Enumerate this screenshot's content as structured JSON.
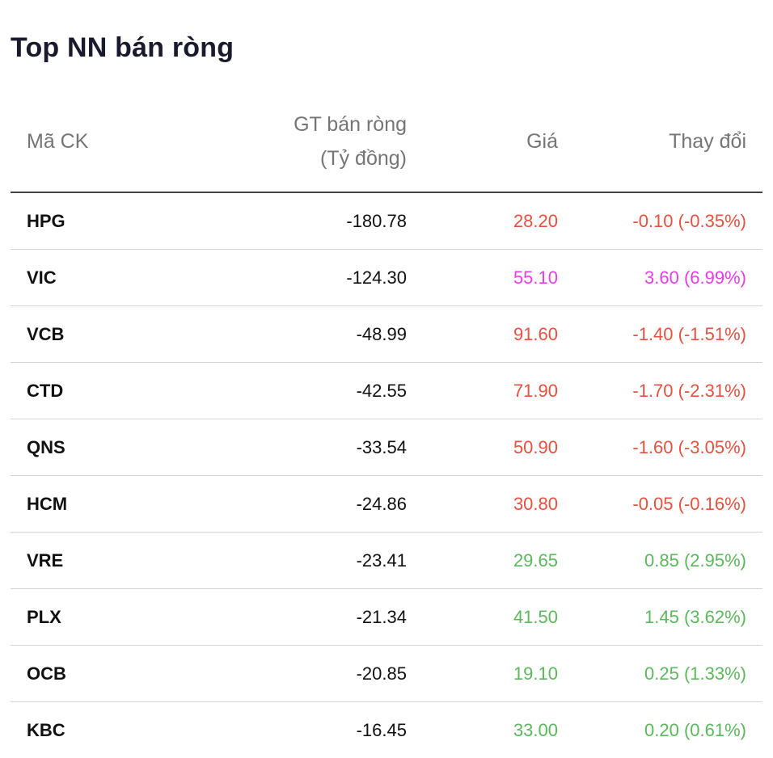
{
  "widget": {
    "title": "Top NN bán ròng"
  },
  "colors": {
    "down": "#e8503f",
    "ceiling": "#e83ee8",
    "up": "#5cb85c",
    "header_text": "#757575"
  },
  "table": {
    "headers": {
      "code": "Mã CK",
      "value_line1": "GT bán ròng",
      "value_line2": "(Tỷ đồng)",
      "price": "Giá",
      "change": "Thay đổi"
    },
    "rows": [
      {
        "code": "HPG",
        "value": "-180.78",
        "price": "28.20",
        "change": "-0.10 (-0.35%)",
        "tone": "down"
      },
      {
        "code": "VIC",
        "value": "-124.30",
        "price": "55.10",
        "change": "3.60 (6.99%)",
        "tone": "ceiling"
      },
      {
        "code": "VCB",
        "value": "-48.99",
        "price": "91.60",
        "change": "-1.40 (-1.51%)",
        "tone": "down"
      },
      {
        "code": "CTD",
        "value": "-42.55",
        "price": "71.90",
        "change": "-1.70 (-2.31%)",
        "tone": "down"
      },
      {
        "code": "QNS",
        "value": "-33.54",
        "price": "50.90",
        "change": "-1.60 (-3.05%)",
        "tone": "down"
      },
      {
        "code": "HCM",
        "value": "-24.86",
        "price": "30.80",
        "change": "-0.05 (-0.16%)",
        "tone": "down"
      },
      {
        "code": "VRE",
        "value": "-23.41",
        "price": "29.65",
        "change": "0.85 (2.95%)",
        "tone": "up"
      },
      {
        "code": "PLX",
        "value": "-21.34",
        "price": "41.50",
        "change": "1.45 (3.62%)",
        "tone": "up"
      },
      {
        "code": "OCB",
        "value": "-20.85",
        "price": "19.10",
        "change": "0.25 (1.33%)",
        "tone": "up"
      },
      {
        "code": "KBC",
        "value": "-16.45",
        "price": "33.00",
        "change": "0.20 (0.61%)",
        "tone": "up"
      }
    ]
  }
}
